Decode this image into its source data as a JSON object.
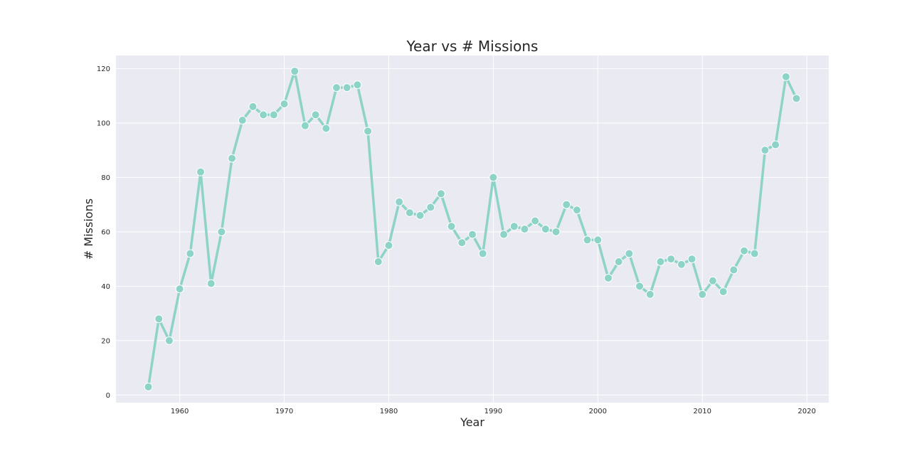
{
  "chart_data": {
    "type": "line",
    "title": "Year vs # Missions",
    "xlabel": "Year",
    "ylabel": "# Missions",
    "xlim": [
      1953.9,
      2022.1
    ],
    "ylim": [
      -2.8,
      124.8
    ],
    "xticks": [
      1960,
      1970,
      1980,
      1990,
      2000,
      2010,
      2020
    ],
    "yticks": [
      0,
      20,
      40,
      60,
      80,
      100,
      120
    ],
    "grid": true,
    "background": "#eaeaf2",
    "line_color": "#8ed3c7",
    "series": [
      {
        "x": [
          1957,
          1958,
          1959,
          1960,
          1961,
          1962,
          1963,
          1964,
          1965,
          1966,
          1967,
          1968,
          1969,
          1970,
          1971,
          1972,
          1973,
          1974,
          1975,
          1976,
          1977,
          1978,
          1979,
          1980,
          1981,
          1982,
          1983,
          1984,
          1985,
          1986,
          1987,
          1988,
          1989,
          1990,
          1991,
          1992,
          1993,
          1994,
          1995,
          1996,
          1997,
          1998,
          1999,
          2000,
          2001,
          2002,
          2003,
          2004,
          2005,
          2006,
          2007,
          2008,
          2009,
          2010,
          2011,
          2012,
          2013,
          2014,
          2015,
          2016,
          2017,
          2018,
          2019
        ],
        "values": [
          3,
          28,
          20,
          39,
          52,
          82,
          41,
          60,
          87,
          101,
          106,
          103,
          103,
          107,
          119,
          99,
          103,
          98,
          113,
          113,
          114,
          97,
          49,
          55,
          71,
          67,
          66,
          69,
          74,
          62,
          56,
          59,
          52,
          80,
          59,
          62,
          61,
          64,
          61,
          60,
          70,
          68,
          57,
          57,
          43,
          49,
          52,
          40,
          37,
          49,
          50,
          48,
          50,
          37,
          42,
          38,
          46,
          53,
          52,
          90,
          92,
          117,
          109
        ]
      }
    ]
  }
}
